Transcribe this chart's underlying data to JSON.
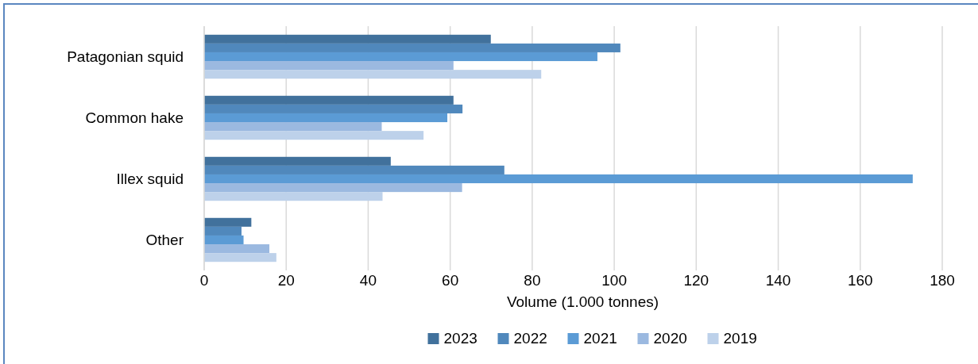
{
  "chart_data": {
    "type": "bar",
    "orientation": "horizontal",
    "xlabel": "Volume (1.000 tonnes)",
    "categories": [
      "Patagonian squid",
      "Common hake",
      "Illex squid",
      "Other"
    ],
    "series": [
      {
        "name": "2023",
        "color": "#41719c",
        "values": [
          69.9,
          60.8,
          45.5,
          11.5
        ]
      },
      {
        "name": "2022",
        "color": "#5088bc",
        "values": [
          101.5,
          63.0,
          73.2,
          9.1
        ]
      },
      {
        "name": "2021",
        "color": "#5b9bd5",
        "values": [
          95.9,
          59.3,
          172.8,
          9.6
        ]
      },
      {
        "name": "2020",
        "color": "#9bb9e0",
        "values": [
          60.8,
          43.3,
          62.9,
          15.9
        ]
      },
      {
        "name": "2019",
        "color": "#bdd1ea",
        "values": [
          82.2,
          53.5,
          43.5,
          17.6
        ]
      }
    ],
    "xlim": [
      0,
      180
    ],
    "xticks": [
      0,
      20,
      40,
      60,
      80,
      100,
      120,
      140,
      160,
      180
    ],
    "grid": "x",
    "legend": "bottom"
  }
}
